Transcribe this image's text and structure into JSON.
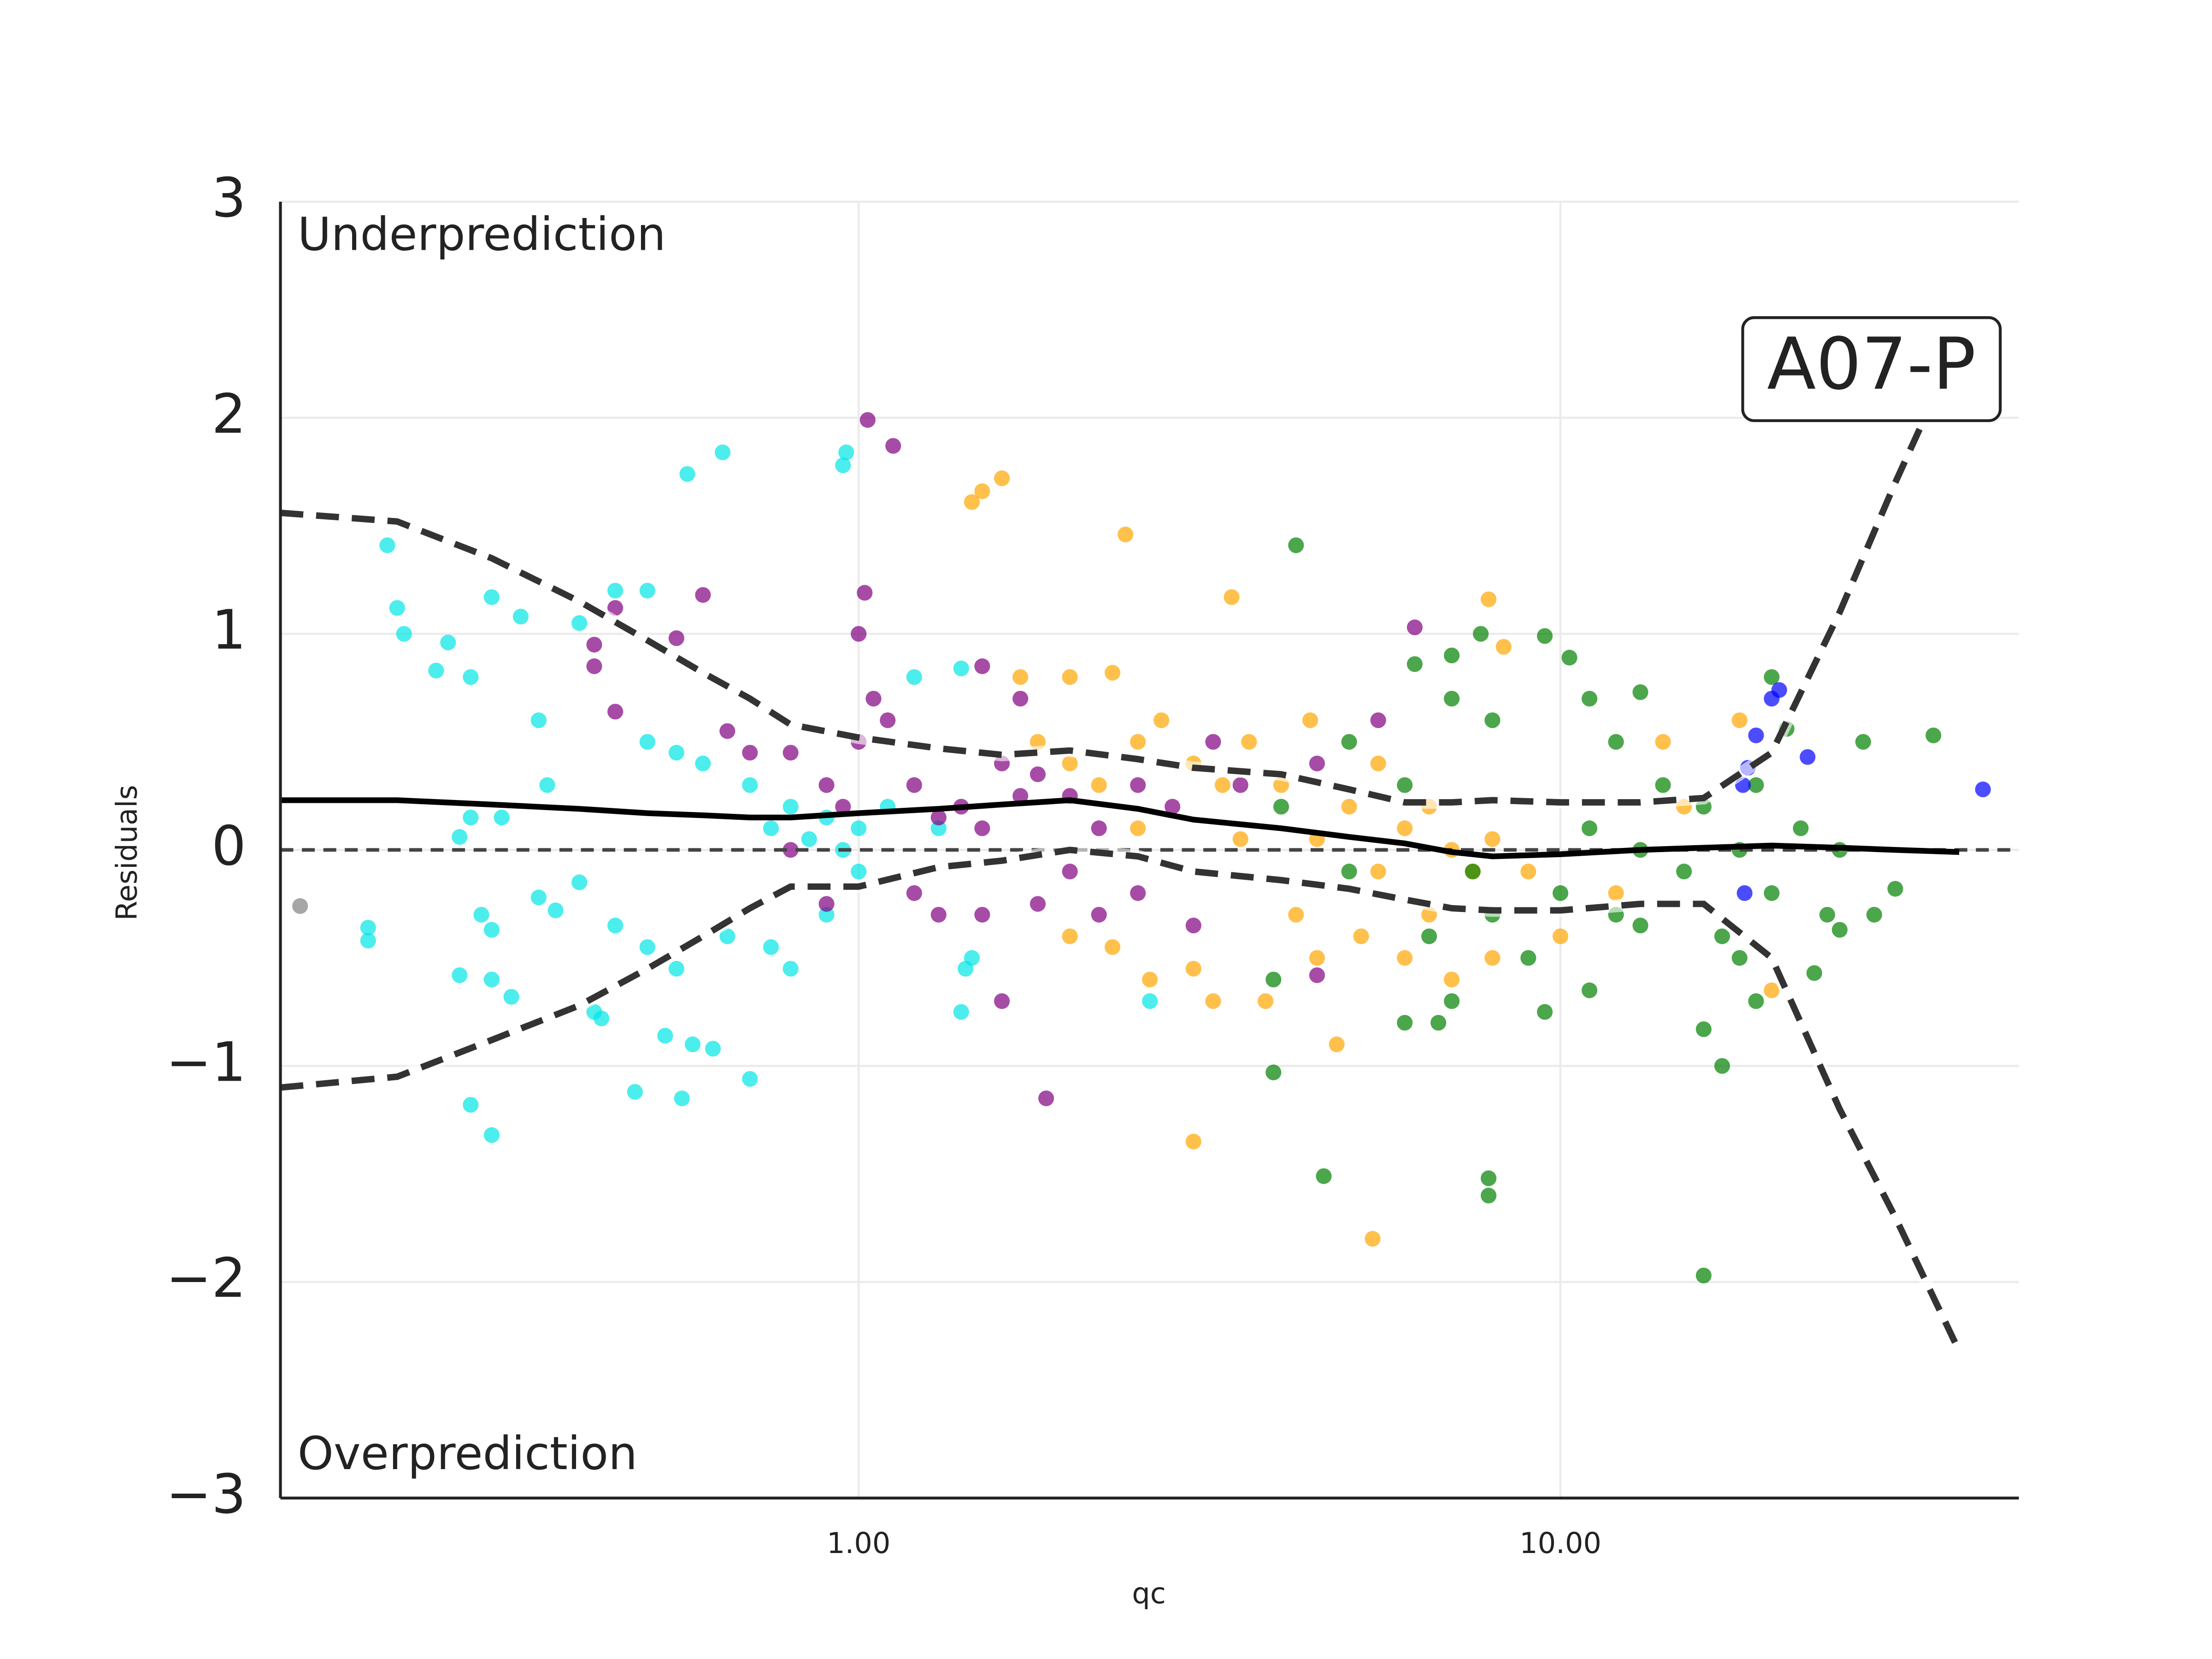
{
  "chart_data": {
    "type": "scatter",
    "xlabel": "qc",
    "ylabel": "Residuals",
    "log_x": true,
    "grid": true,
    "xlim": [
      0.15,
      45
    ],
    "ylim": [
      -3,
      3
    ],
    "xticks": [
      {
        "value": 1,
        "label": "1.00"
      },
      {
        "value": 10,
        "label": "10.00"
      }
    ],
    "yticks": [
      {
        "value": -3,
        "label": "−3"
      },
      {
        "value": -2,
        "label": "−2"
      },
      {
        "value": -1,
        "label": "−1"
      },
      0,
      1,
      2,
      3
    ],
    "reference_line": 0,
    "annotations": {
      "top": "Underprediction",
      "bottom": "Overprediction",
      "box": "A07-P"
    },
    "series": [
      {
        "color": "#00e5e5",
        "x": [
          0.213,
          0.22,
          0.225,
          0.25,
          0.26,
          0.28,
          0.27,
          0.28,
          0.3,
          0.31,
          0.33,
          0.35,
          0.36,
          0.4,
          0.45,
          0.5,
          0.57,
          0.64,
          0.96,
          0.95,
          0.5,
          0.55,
          0.6,
          0.7,
          0.75,
          0.8,
          0.85,
          0.9,
          0.95,
          1.0,
          1.1,
          1.3,
          1.4,
          1.2,
          0.2,
          0.2,
          0.27,
          0.29,
          0.3,
          0.3,
          0.32,
          0.35,
          0.37,
          0.4,
          0.42,
          0.43,
          0.45,
          0.5,
          0.55,
          0.48,
          0.56,
          0.58,
          0.62,
          0.53,
          0.7,
          0.28,
          0.3,
          0.8,
          0.75,
          0.65,
          1.4,
          1.42,
          1.45,
          2.6,
          0.9,
          1.0
        ],
        "values": [
          1.41,
          1.12,
          1.0,
          0.83,
          0.96,
          0.8,
          0.06,
          0.15,
          1.17,
          0.15,
          1.08,
          0.6,
          0.3,
          1.05,
          1.2,
          1.2,
          1.74,
          1.84,
          1.84,
          1.78,
          0.5,
          0.45,
          0.4,
          0.3,
          0.1,
          0.2,
          0.05,
          0.15,
          0.0,
          0.1,
          0.2,
          0.1,
          0.84,
          0.8,
          -0.36,
          -0.42,
          -0.58,
          -0.3,
          -0.37,
          -0.6,
          -0.68,
          -0.22,
          -0.28,
          -0.15,
          -0.75,
          -0.78,
          -0.35,
          -0.45,
          -0.55,
          -1.12,
          -1.15,
          -0.9,
          -0.92,
          -0.86,
          -1.06,
          -1.18,
          -1.32,
          -0.55,
          -0.45,
          -0.4,
          -0.75,
          -0.55,
          -0.5,
          -0.7,
          -0.3,
          -0.1
        ]
      },
      {
        "color": "#800080",
        "x": [
          0.45,
          0.42,
          0.42,
          0.45,
          0.55,
          0.6,
          0.65,
          0.7,
          0.8,
          0.9,
          0.95,
          1.0,
          1.0,
          1.02,
          1.03,
          1.12,
          1.05,
          1.1,
          1.2,
          1.3,
          1.4,
          1.5,
          1.6,
          1.7,
          1.8,
          2.0,
          2.2,
          2.5,
          2.8,
          3.2,
          3.5,
          4.5,
          5.5,
          6.2,
          0.8,
          0.9,
          1.2,
          1.3,
          1.5,
          1.6,
          1.8,
          1.85,
          2.0,
          2.2,
          2.5,
          3.0,
          4.5,
          1.5,
          1.7
        ],
        "values": [
          1.12,
          0.95,
          0.85,
          0.64,
          0.98,
          1.18,
          0.55,
          0.45,
          0.45,
          0.3,
          0.2,
          0.5,
          1.0,
          1.19,
          1.99,
          1.87,
          0.7,
          0.6,
          0.3,
          0.15,
          0.2,
          0.1,
          0.4,
          0.25,
          0.35,
          0.25,
          0.1,
          0.3,
          0.2,
          0.5,
          0.3,
          0.4,
          0.6,
          1.03,
          0.0,
          -0.25,
          -0.2,
          -0.3,
          -0.3,
          -0.7,
          -0.25,
          -1.15,
          -0.1,
          -0.3,
          -0.2,
          -0.35,
          -0.58,
          0.85,
          0.7
        ]
      },
      {
        "color": "#ffa500",
        "x": [
          1.45,
          1.5,
          1.6,
          2.4,
          3.4,
          7.9,
          8.3,
          1.7,
          2.0,
          2.3,
          1.8,
          2.0,
          2.2,
          2.5,
          2.7,
          3.0,
          3.3,
          3.6,
          4.0,
          4.4,
          5.0,
          5.5,
          6.0,
          6.5,
          7.0,
          7.5,
          8.0,
          9.0,
          2.0,
          2.3,
          2.6,
          3.0,
          3.2,
          3.0,
          3.8,
          4.2,
          4.5,
          4.8,
          5.4,
          5.2,
          6.0,
          7.0,
          8.0,
          10.0,
          12,
          15,
          18,
          20,
          14,
          2.5,
          3.5,
          4.5,
          5.5,
          6.5
        ],
        "values": [
          1.61,
          1.66,
          1.72,
          1.46,
          1.17,
          1.16,
          0.94,
          0.8,
          0.8,
          0.82,
          0.5,
          0.4,
          0.3,
          0.5,
          0.6,
          0.4,
          0.3,
          0.5,
          0.3,
          0.6,
          0.2,
          0.4,
          0.1,
          0.2,
          0.0,
          -0.1,
          0.05,
          -0.1,
          -0.4,
          -0.45,
          -0.6,
          -0.55,
          -0.7,
          -1.35,
          -0.7,
          -0.3,
          -0.5,
          -0.9,
          -1.8,
          -0.4,
          -0.5,
          -0.6,
          -0.5,
          -0.4,
          -0.2,
          0.2,
          0.6,
          -0.65,
          0.5,
          0.1,
          0.05,
          0.05,
          -0.1,
          -0.3
        ]
      },
      {
        "color": "#008000",
        "x": [
          4.2,
          6.2,
          7.0,
          7.7,
          9.5,
          10.3,
          11.0,
          12,
          13,
          8,
          7,
          6,
          5,
          4,
          5,
          6.5,
          7,
          7.5,
          8,
          9,
          9.5,
          10,
          11,
          12,
          13,
          14,
          15,
          16,
          17,
          18,
          19,
          20,
          22,
          24,
          25,
          27,
          28,
          30,
          34,
          17,
          16,
          16,
          7.9,
          7.9,
          4.6,
          3.9,
          3.9,
          6.0,
          6.7,
          11,
          13,
          18,
          19,
          23,
          25,
          21,
          20
        ],
        "values": [
          1.41,
          0.86,
          0.9,
          1.0,
          0.99,
          0.89,
          0.7,
          0.5,
          0.73,
          0.6,
          0.7,
          0.3,
          0.5,
          0.2,
          -0.1,
          -0.4,
          -0.7,
          -0.1,
          -0.3,
          -0.5,
          -0.75,
          -0.2,
          0.1,
          -0.3,
          0.0,
          0.3,
          -0.1,
          0.2,
          -0.4,
          0.0,
          0.3,
          -0.2,
          0.1,
          -0.3,
          0.0,
          0.5,
          -0.3,
          -0.18,
          0.53,
          -1.0,
          -0.83,
          -1.97,
          -1.52,
          -1.6,
          -1.51,
          -1.03,
          -0.6,
          -0.8,
          -0.8,
          -0.65,
          -0.35,
          -0.5,
          -0.7,
          -0.57,
          -0.37,
          0.56,
          0.8
        ]
      },
      {
        "color": "#0000ff",
        "x": [
          19,
          18.5,
          18.2,
          20,
          20.5,
          22.5,
          40,
          18.3
        ],
        "values": [
          0.53,
          0.38,
          0.3,
          0.7,
          0.74,
          0.43,
          0.28,
          -0.2
        ]
      },
      {
        "color": "#808080",
        "x": [
          0.16
        ],
        "values": [
          -0.26
        ]
      }
    ],
    "lines": [
      {
        "color": "#000000",
        "style": "solid",
        "x": [
          0.15,
          0.22,
          0.3,
          0.4,
          0.5,
          0.6,
          0.7,
          0.8,
          1.0,
          1.3,
          1.6,
          2.0,
          2.5,
          3.0,
          4.0,
          5.0,
          6.0,
          7.0,
          8.0,
          10,
          13,
          16,
          20,
          25,
          30,
          37
        ],
        "values": [
          0.23,
          0.23,
          0.21,
          0.19,
          0.17,
          0.16,
          0.15,
          0.15,
          0.17,
          0.19,
          0.21,
          0.23,
          0.19,
          0.14,
          0.1,
          0.06,
          0.03,
          -0.01,
          -0.03,
          -0.02,
          0.0,
          0.01,
          0.02,
          0.01,
          0.0,
          -0.01
        ]
      },
      {
        "color": "#333333",
        "style": "dashed",
        "x": [
          0.15,
          0.22,
          0.3,
          0.4,
          0.5,
          0.6,
          0.7,
          0.8,
          1.0,
          1.3,
          1.6,
          2.0,
          2.5,
          3.0,
          4.0,
          5.0,
          6.0,
          7.0,
          8.0,
          10,
          13,
          16,
          20,
          25,
          30,
          37
        ],
        "values": [
          1.56,
          1.52,
          1.35,
          1.15,
          0.97,
          0.82,
          0.7,
          0.58,
          0.52,
          0.47,
          0.44,
          0.46,
          0.42,
          0.38,
          0.35,
          0.28,
          0.22,
          0.22,
          0.23,
          0.22,
          0.22,
          0.24,
          0.45,
          1.1,
          1.7,
          2.35
        ]
      },
      {
        "color": "#333333",
        "style": "dashed",
        "x": [
          0.15,
          0.22,
          0.3,
          0.4,
          0.5,
          0.6,
          0.7,
          0.8,
          1.0,
          1.3,
          1.6,
          2.0,
          2.5,
          3.0,
          4.0,
          5.0,
          6.0,
          7.0,
          8.0,
          10,
          13,
          16,
          20,
          25,
          30,
          37
        ],
        "values": [
          -1.1,
          -1.05,
          -0.88,
          -0.72,
          -0.55,
          -0.4,
          -0.27,
          -0.17,
          -0.17,
          -0.08,
          -0.05,
          0.0,
          -0.03,
          -0.1,
          -0.14,
          -0.18,
          -0.23,
          -0.27,
          -0.28,
          -0.28,
          -0.25,
          -0.25,
          -0.5,
          -1.2,
          -1.7,
          -2.32
        ]
      }
    ]
  }
}
